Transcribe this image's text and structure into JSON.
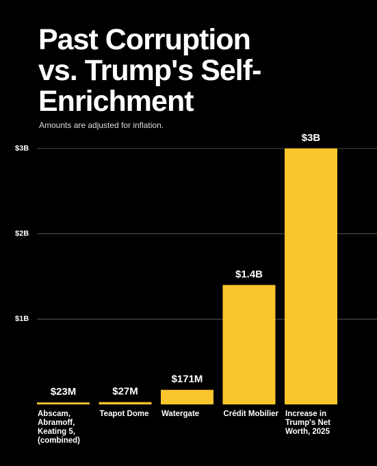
{
  "chart_data": {
    "type": "bar",
    "title": "Past Corruption vs. Trump's Self-Enrichment",
    "subtitle": "Amounts are adjusted for inflation.",
    "categories": [
      "Abscam, Abramoff, Keating 5, (combined)",
      "Teapot Dome",
      "Watergate",
      "Crédit Mobilier",
      "Increase in Trump's Net Worth, 2025"
    ],
    "values": [
      23000000,
      27000000,
      171000000,
      1400000000,
      3000000000
    ],
    "value_labels": [
      "$23M",
      "$27M",
      "$171M",
      "$1.4B",
      "$3B"
    ],
    "color": "#fbc52e",
    "ylim": [
      0,
      3000000000
    ],
    "yticks": [
      {
        "value": 1000000000,
        "label": "$1B"
      },
      {
        "value": 2000000000,
        "label": "$2B"
      },
      {
        "value": 3000000000,
        "label": "$3B"
      }
    ],
    "grid": true
  }
}
